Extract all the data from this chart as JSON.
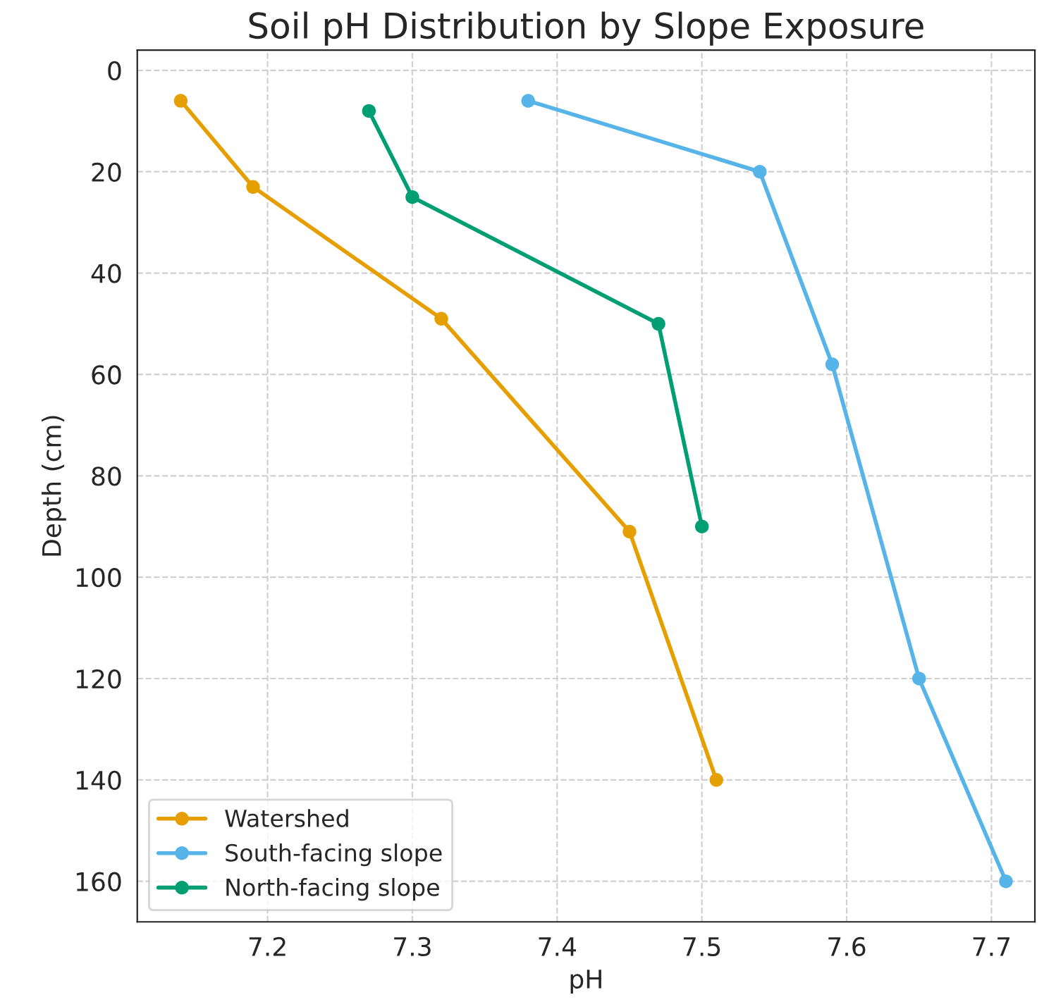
{
  "chart_data": {
    "type": "line",
    "title": "Soil pH Distribution by Slope Exposure",
    "xlabel": "pH",
    "ylabel": "Depth (cm)",
    "series": [
      {
        "name": "Watershed",
        "color": "#e69f00",
        "x": [
          7.14,
          7.19,
          7.32,
          7.45,
          7.51
        ],
        "values": [
          6,
          23,
          49,
          91,
          140
        ]
      },
      {
        "name": "South-facing slope",
        "color": "#56b4e9",
        "x": [
          7.38,
          7.54,
          7.59,
          7.65,
          7.71
        ],
        "values": [
          6,
          20,
          58,
          120,
          160
        ]
      },
      {
        "name": "North-facing slope",
        "color": "#009e73",
        "x": [
          7.27,
          7.3,
          7.47,
          7.5
        ],
        "values": [
          8,
          25,
          50,
          90
        ]
      }
    ],
    "xlim": [
      7.11,
      7.73
    ],
    "xticks": [
      7.2,
      7.3,
      7.4,
      7.5,
      7.6,
      7.7
    ],
    "ylim": [
      168,
      -4
    ],
    "yticks": [
      0,
      20,
      40,
      60,
      80,
      100,
      120,
      140,
      160
    ],
    "grid": true,
    "legend": "bottom left",
    "marker": "circle",
    "line_style": "solid"
  }
}
